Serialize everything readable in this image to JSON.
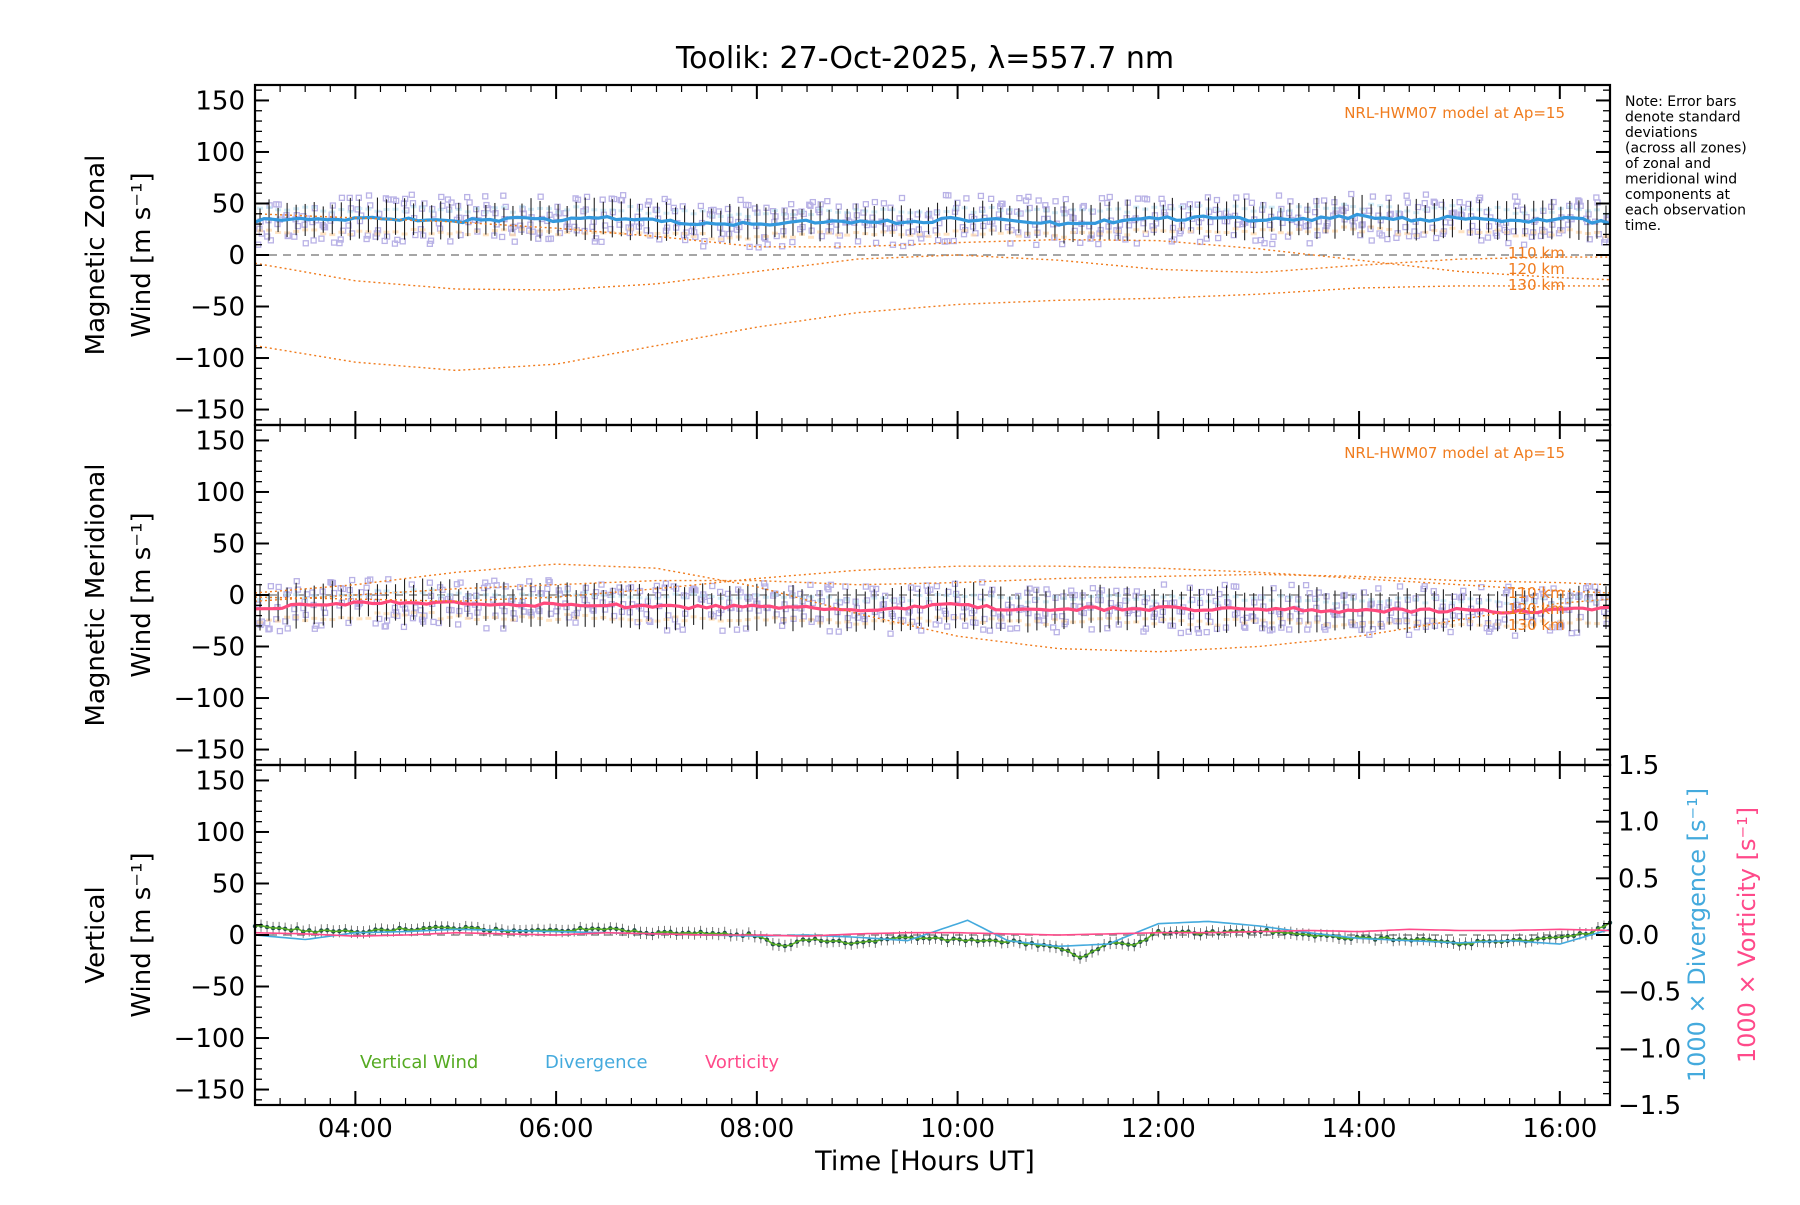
{
  "colors": {
    "axes": "#000000",
    "model": "#f07c1e",
    "scatter": "#b9b2e6",
    "zonal_mean": "#3399dd",
    "meridional_mean": "#ff4a7d",
    "vertical_wind": "#55aa22",
    "vertical_marker": "#1e4a4a",
    "divergence": "#44aadd",
    "vorticity": "#ff4a8a",
    "zero_line": "#888888",
    "error_bar": "#222222"
  },
  "chart_data": {
    "type": "line",
    "title": "Toolik: 27-Oct-2025, λ=557.7 nm",
    "xlabel": "Time [Hours UT]",
    "xlim": [
      3.0,
      16.5
    ],
    "x_ticks": [
      4,
      6,
      8,
      10,
      12,
      14,
      16
    ],
    "x_tick_labels": [
      "04:00",
      "06:00",
      "08:00",
      "10:00",
      "12:00",
      "14:00",
      "16:00"
    ],
    "note": "Note: Error bars denote standard deviations (across all zones) of zonal and meridional wind components at each observation time.",
    "note_lines": [
      "Note: Error bars",
      "denote standard",
      "deviations",
      "(across all zones)",
      "of zonal and",
      "meridional wind",
      "components at",
      "each observation",
      "time."
    ],
    "panels": [
      {
        "id": "zonal",
        "ylabel_line1": "Magnetic Zonal",
        "ylabel_line2": "Wind [m s⁻¹]",
        "ylim": [
          -165,
          165
        ],
        "y_ticks": [
          150,
          100,
          50,
          0,
          -50,
          -100,
          -150
        ],
        "y_tick_labels": [
          "150",
          "100",
          "50",
          "0",
          "−50",
          "−100",
          "−150"
        ],
        "model_label": "NRL-HWM07 model at Ap=15",
        "model_curves": [
          {
            "name": "110 km",
            "x": [
              3.0,
              4.0,
              5.0,
              6.0,
              7.0,
              8.0,
              9.0,
              10.0,
              11.0,
              12.0,
              13.0,
              14.0,
              15.0,
              16.0,
              16.5
            ],
            "values": [
              -8,
              -25,
              -33,
              -34,
              -28,
              -16,
              -4,
              0,
              -5,
              -14,
              -17,
              -10,
              -4,
              -2,
              -2
            ]
          },
          {
            "name": "120 km",
            "x": [
              3.0,
              4.0,
              5.0,
              6.0,
              7.0,
              8.0,
              9.0,
              10.0,
              11.0,
              12.0,
              13.0,
              14.0,
              15.0,
              16.0,
              16.5
            ],
            "values": [
              40,
              36,
              32,
              26,
              18,
              8,
              8,
              12,
              15,
              14,
              6,
              -5,
              -16,
              -22,
              -24
            ]
          },
          {
            "name": "130 km",
            "x": [
              3.0,
              4.0,
              5.0,
              6.0,
              7.0,
              8.0,
              9.0,
              10.0,
              11.0,
              12.0,
              13.0,
              14.0,
              15.0,
              16.0,
              16.5
            ],
            "values": [
              -88,
              -104,
              -112,
              -106,
              -88,
              -70,
              -56,
              -48,
              -44,
              -42,
              -38,
              -32,
              -30,
              -30,
              -30
            ]
          }
        ],
        "model_curve_labels": [
          "110 km",
          "120 km",
          "130 km"
        ],
        "mean_series": {
          "name": "Zonal wind",
          "x": [
            3.0,
            3.5,
            4.0,
            4.5,
            5.0,
            5.5,
            6.0,
            6.5,
            7.0,
            7.5,
            8.0,
            8.5,
            9.0,
            9.5,
            10.0,
            10.5,
            11.0,
            11.5,
            12.0,
            12.5,
            13.0,
            13.5,
            14.0,
            14.5,
            15.0,
            15.5,
            16.0,
            16.5
          ],
          "values": [
            34,
            34,
            35,
            35,
            33,
            35,
            34,
            36,
            33,
            31,
            30,
            32,
            33,
            32,
            35,
            34,
            31,
            33,
            35,
            36,
            34,
            35,
            38,
            34,
            36,
            33,
            35,
            32
          ],
          "std": 16
        }
      },
      {
        "id": "meridional",
        "ylabel_line1": "Magnetic Meridional",
        "ylabel_line2": "Wind [m s⁻¹]",
        "ylim": [
          -165,
          165
        ],
        "y_ticks": [
          150,
          100,
          50,
          0,
          -50,
          -100,
          -150
        ],
        "y_tick_labels": [
          "150",
          "100",
          "50",
          "0",
          "−50",
          "−100",
          "−150"
        ],
        "model_label": "NRL-HWM07 model at Ap=15",
        "model_curves": [
          {
            "name": "110 km",
            "x": [
              3.0,
              4.0,
              5.0,
              6.0,
              7.0,
              8.0,
              9.0,
              10.0,
              11.0,
              12.0,
              13.0,
              14.0,
              15.0,
              16.0,
              16.5
            ],
            "values": [
              2,
              10,
              22,
              30,
              26,
              8,
              -18,
              -40,
              -52,
              -55,
              -50,
              -40,
              -24,
              -8,
              -4
            ]
          },
          {
            "name": "120 km",
            "x": [
              3.0,
              4.0,
              5.0,
              6.0,
              7.0,
              8.0,
              9.0,
              10.0,
              11.0,
              12.0,
              13.0,
              14.0,
              15.0,
              16.0,
              16.5
            ],
            "values": [
              -6,
              0,
              6,
              10,
              14,
              14,
              10,
              12,
              16,
              18,
              20,
              18,
              14,
              12,
              10
            ]
          },
          {
            "name": "130 km",
            "x": [
              3.0,
              4.0,
              5.0,
              6.0,
              7.0,
              8.0,
              9.0,
              10.0,
              11.0,
              12.0,
              13.0,
              14.0,
              15.0,
              16.0,
              16.5
            ],
            "values": [
              -2,
              -4,
              -6,
              -2,
              6,
              16,
              24,
              28,
              28,
              26,
              22,
              16,
              10,
              4,
              2
            ]
          }
        ],
        "model_curve_labels": [
          "110 km",
          "120 km",
          "130 km"
        ],
        "mean_series": {
          "name": "Meridional wind",
          "x": [
            3.0,
            3.5,
            4.0,
            4.5,
            5.0,
            5.5,
            6.0,
            6.5,
            7.0,
            7.5,
            8.0,
            8.5,
            9.0,
            9.5,
            10.0,
            10.5,
            11.0,
            11.5,
            12.0,
            12.5,
            13.0,
            13.5,
            14.0,
            14.5,
            15.0,
            15.5,
            16.0,
            16.5
          ],
          "values": [
            -12,
            -10,
            -8,
            -7,
            -8,
            -10,
            -9,
            -10,
            -12,
            -11,
            -12,
            -13,
            -15,
            -13,
            -9,
            -14,
            -14,
            -13,
            -13,
            -14,
            -13,
            -14,
            -16,
            -15,
            -15,
            -16,
            -15,
            -12
          ],
          "std": 18
        }
      },
      {
        "id": "vertical",
        "ylabel_line1": "Vertical",
        "ylabel_line2": "Wind [m s⁻¹]",
        "ylim": [
          -165,
          165
        ],
        "y_ticks": [
          150,
          100,
          50,
          0,
          -50,
          -100,
          -150
        ],
        "y_tick_labels": [
          "150",
          "100",
          "50",
          "0",
          "−50",
          "−100",
          "−150"
        ],
        "right_axis": {
          "ylim": [
            -1.5,
            1.5
          ],
          "ticks": [
            1.5,
            1.0,
            0.5,
            0.0,
            -0.5,
            -1.0,
            -1.5
          ],
          "tick_labels": [
            "1.5",
            "1.0",
            "0.5",
            "0.0",
            "−0.5",
            "−1.0",
            "−1.5"
          ],
          "label_divergence": "1000 × Divergence [s⁻¹]",
          "label_vorticity": "1000 × Vorticity [s⁻¹]"
        },
        "legend": [
          "Vertical Wind",
          "Divergence",
          "Vorticity"
        ],
        "series": [
          {
            "name": "Vertical Wind",
            "x": [
              3.0,
              3.5,
              4.0,
              4.5,
              5.0,
              5.5,
              6.0,
              6.5,
              7.0,
              7.5,
              8.0,
              8.25,
              8.5,
              9.0,
              9.5,
              10.0,
              10.5,
              11.0,
              11.25,
              11.5,
              11.75,
              12.0,
              12.5,
              13.0,
              13.5,
              14.0,
              14.5,
              15.0,
              15.5,
              16.0,
              16.3,
              16.5
            ],
            "values": [
              10,
              4,
              3,
              6,
              7,
              4,
              5,
              6,
              2,
              2,
              0,
              -12,
              -4,
              -8,
              -2,
              -5,
              -6,
              -12,
              -22,
              -8,
              -10,
              3,
              2,
              4,
              0,
              -3,
              -4,
              -8,
              -6,
              -3,
              2,
              12
            ]
          },
          {
            "name": "Divergence",
            "x": [
              3.0,
              3.5,
              4.0,
              4.5,
              5.0,
              5.5,
              6.0,
              6.5,
              7.0,
              7.5,
              8.0,
              8.5,
              9.0,
              9.5,
              10.0,
              10.1,
              10.5,
              11.0,
              11.5,
              12.0,
              12.5,
              13.0,
              13.5,
              14.0,
              14.5,
              15.0,
              15.5,
              16.0,
              16.5
            ],
            "values": [
              0.0,
              -0.04,
              0.02,
              0.03,
              0.05,
              0.04,
              0.03,
              0.02,
              0.01,
              0.0,
              -0.01,
              0.0,
              -0.02,
              -0.05,
              0.1,
              0.13,
              -0.05,
              -0.1,
              -0.08,
              0.1,
              0.12,
              0.08,
              0.02,
              -0.03,
              -0.05,
              -0.07,
              -0.05,
              -0.08,
              0.05
            ]
          },
          {
            "name": "Vorticity",
            "x": [
              3.0,
              3.5,
              4.0,
              4.5,
              5.0,
              5.5,
              6.0,
              6.5,
              7.0,
              7.5,
              8.0,
              8.5,
              9.0,
              9.5,
              10.0,
              10.5,
              11.0,
              11.5,
              12.0,
              12.5,
              13.0,
              13.5,
              14.0,
              14.5,
              15.0,
              15.5,
              16.0,
              16.5
            ],
            "values": [
              0.02,
              0.01,
              -0.01,
              0.0,
              0.02,
              0.01,
              0.0,
              0.02,
              0.01,
              0.0,
              0.0,
              -0.01,
              0.01,
              0.02,
              0.02,
              0.01,
              0.0,
              0.01,
              0.02,
              0.02,
              0.03,
              0.04,
              0.03,
              0.05,
              0.04,
              0.04,
              0.05,
              0.04
            ]
          }
        ]
      }
    ]
  }
}
